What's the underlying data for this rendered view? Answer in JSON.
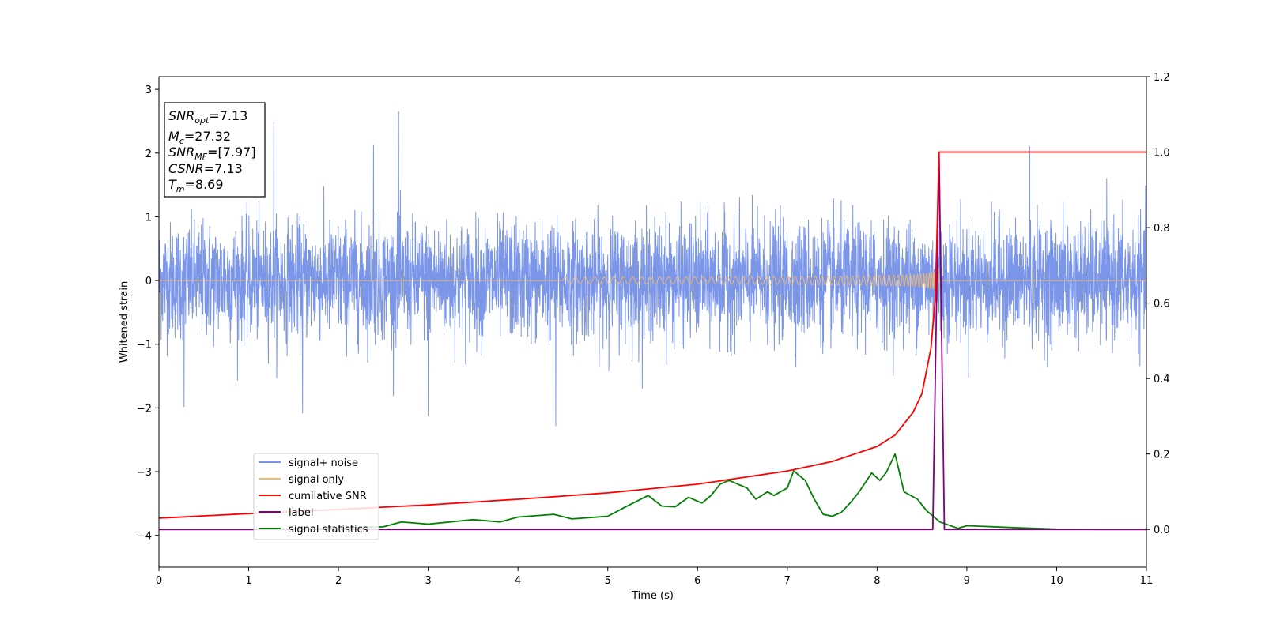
{
  "chart_data": {
    "type": "line",
    "xlabel": "Time (s)",
    "ylabel": "Whitened strain",
    "xlim": [
      0,
      11
    ],
    "ylim": [
      -4.5,
      3.2
    ],
    "y2lim": [
      -0.1,
      1.2
    ],
    "x_ticks": [
      "0",
      "1",
      "2",
      "3",
      "4",
      "5",
      "6",
      "7",
      "8",
      "9",
      "10",
      "11"
    ],
    "y_ticks": [
      "3",
      "2",
      "1",
      "0",
      "−1",
      "−2",
      "−3",
      "−4"
    ],
    "y2_ticks": [
      "1.2",
      "1.0",
      "0.8",
      "0.6",
      "0.4",
      "0.2",
      "0.0"
    ],
    "grid": false,
    "legend_position": "lower-left",
    "colors": {
      "signal_noise": "#7b96e8",
      "signal_only": "#f5b96a",
      "cumulative_snr": "#ff0000",
      "label": "#800080",
      "signal_statistics": "#008000"
    },
    "annotation": {
      "snr_opt": {
        "base": "SNR",
        "sub": "opt",
        "value": "=7.13"
      },
      "mc": {
        "base": "M",
        "sub": "c",
        "value": "=27.32"
      },
      "snr_mf": {
        "base": "SNR",
        "sub": "MF",
        "value": "=[7.97]"
      },
      "csnr": {
        "base": "CSNR",
        "value": "=7.13"
      },
      "tm": {
        "base": "T",
        "sub": "m",
        "value": "=8.69"
      }
    },
    "series": [
      {
        "name": "signal+ noise",
        "axis": "left",
        "description_style": "white noise, roughly ±1 envelope",
        "typical_amplitude": 0.45,
        "peak_points": [
          [
            0.28,
            -1.98
          ],
          [
            1.28,
            2.48
          ],
          [
            1.6,
            -2.08
          ],
          [
            2.39,
            2.12
          ],
          [
            2.67,
            2.65
          ],
          [
            3.0,
            -2.12
          ],
          [
            4.42,
            -2.28
          ],
          [
            9.7,
            2.1
          ],
          [
            8.7,
            1.45
          ]
        ]
      },
      {
        "name": "signal only",
        "axis": "left",
        "chirp_start_s": 4.5,
        "merger_time_s": 8.69,
        "peak_amplitude": 0.5
      },
      {
        "name": "cumilative SNR",
        "axis": "right",
        "x": [
          0,
          1,
          2,
          3,
          4,
          5,
          6,
          7,
          7.5,
          8,
          8.2,
          8.4,
          8.5,
          8.6,
          8.65,
          8.69,
          11
        ],
        "y": [
          0.03,
          0.042,
          0.053,
          0.065,
          0.08,
          0.097,
          0.12,
          0.155,
          0.18,
          0.22,
          0.25,
          0.31,
          0.36,
          0.48,
          0.62,
          1.0,
          1.0
        ]
      },
      {
        "name": "label",
        "axis": "right",
        "x": [
          0,
          8.62,
          8.69,
          8.75,
          11
        ],
        "y": [
          0.0,
          0.0,
          1.0,
          0.0,
          0.0
        ]
      },
      {
        "name": "signal statistics",
        "axis": "right",
        "x": [
          0,
          1,
          2,
          2.5,
          2.7,
          3.0,
          3.5,
          3.8,
          4.0,
          4.4,
          4.6,
          5.0,
          5.2,
          5.45,
          5.6,
          5.75,
          5.9,
          6.05,
          6.15,
          6.25,
          6.35,
          6.45,
          6.55,
          6.65,
          6.78,
          6.85,
          7.0,
          7.07,
          7.2,
          7.3,
          7.4,
          7.5,
          7.6,
          7.7,
          7.8,
          7.94,
          8.03,
          8.1,
          8.2,
          8.3,
          8.45,
          8.55,
          8.7,
          8.9,
          9.0,
          9.2,
          9.5,
          10.0,
          10.5,
          11.0
        ],
        "y": [
          0.0,
          0.0,
          0.003,
          0.007,
          0.02,
          0.014,
          0.026,
          0.02,
          0.033,
          0.04,
          0.028,
          0.035,
          0.06,
          0.09,
          0.062,
          0.06,
          0.085,
          0.07,
          0.09,
          0.12,
          0.13,
          0.12,
          0.11,
          0.08,
          0.1,
          0.09,
          0.11,
          0.155,
          0.13,
          0.08,
          0.04,
          0.035,
          0.045,
          0.07,
          0.1,
          0.15,
          0.13,
          0.15,
          0.2,
          0.1,
          0.08,
          0.05,
          0.02,
          0.003,
          0.01,
          0.008,
          0.005,
          0.001,
          0.0,
          0.0
        ]
      }
    ]
  }
}
